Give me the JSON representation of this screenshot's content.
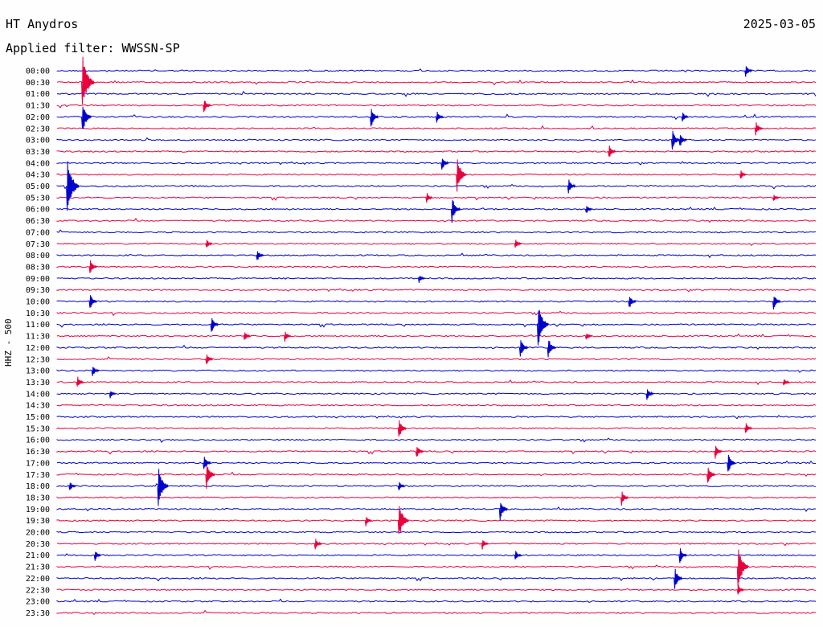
{
  "header": {
    "station": "HT Anydros",
    "date": "2025-03-05",
    "filter": "Applied filter: WWSSN-SP"
  },
  "colors": {
    "even_trace": "#0000cc",
    "odd_trace": "#e8003c"
  },
  "chart_data": {
    "type": "line",
    "title": "HT Anydros",
    "ylabel": "HHZ - 500",
    "row_interval_minutes": 30,
    "row_labels": [
      "00:00",
      "00:30",
      "01:00",
      "01:30",
      "02:00",
      "02:30",
      "03:00",
      "03:30",
      "04:00",
      "04:30",
      "05:00",
      "05:30",
      "06:00",
      "06:30",
      "07:00",
      "07:30",
      "08:00",
      "08:30",
      "09:00",
      "09:30",
      "10:00",
      "10:30",
      "11:00",
      "11:30",
      "12:00",
      "12:30",
      "13:00",
      "13:30",
      "14:00",
      "14:30",
      "15:00",
      "15:30",
      "16:00",
      "16:30",
      "17:00",
      "17:30",
      "18:00",
      "18:30",
      "19:00",
      "19:30",
      "20:00",
      "20:30",
      "21:00",
      "21:30",
      "22:00",
      "22:30",
      "23:00",
      "23:30"
    ],
    "events": [
      {
        "row": 0,
        "minute": 27.2,
        "amp": 0.6
      },
      {
        "row": 1,
        "minute": 1.0,
        "amp": 2.5
      },
      {
        "row": 3,
        "minute": 5.8,
        "amp": 0.7
      },
      {
        "row": 4,
        "minute": 1.0,
        "amp": 1.5
      },
      {
        "row": 4,
        "minute": 12.4,
        "amp": 1.0
      },
      {
        "row": 4,
        "minute": 15.0,
        "amp": 0.6
      },
      {
        "row": 4,
        "minute": 24.7,
        "amp": 0.5
      },
      {
        "row": 5,
        "minute": 27.6,
        "amp": 0.7
      },
      {
        "row": 6,
        "minute": 24.3,
        "amp": 1.0
      },
      {
        "row": 6,
        "minute": 24.6,
        "amp": 0.7
      },
      {
        "row": 7,
        "minute": 21.8,
        "amp": 0.7
      },
      {
        "row": 8,
        "minute": 15.2,
        "amp": 0.7
      },
      {
        "row": 9,
        "minute": 15.8,
        "amp": 1.6
      },
      {
        "row": 9,
        "minute": 27.0,
        "amp": 0.5
      },
      {
        "row": 10,
        "minute": 0.4,
        "amp": 2.5
      },
      {
        "row": 10,
        "minute": 20.2,
        "amp": 0.8
      },
      {
        "row": 11,
        "minute": 14.6,
        "amp": 0.5
      },
      {
        "row": 11,
        "minute": 28.3,
        "amp": 0.4
      },
      {
        "row": 12,
        "minute": 15.6,
        "amp": 1.2
      },
      {
        "row": 12,
        "minute": 20.9,
        "amp": 0.5
      },
      {
        "row": 15,
        "minute": 5.9,
        "amp": 0.5
      },
      {
        "row": 15,
        "minute": 18.1,
        "amp": 0.5
      },
      {
        "row": 16,
        "minute": 7.9,
        "amp": 0.6
      },
      {
        "row": 17,
        "minute": 1.3,
        "amp": 0.7
      },
      {
        "row": 18,
        "minute": 14.3,
        "amp": 0.4
      },
      {
        "row": 20,
        "minute": 1.3,
        "amp": 0.8
      },
      {
        "row": 20,
        "minute": 22.6,
        "amp": 0.7
      },
      {
        "row": 20,
        "minute": 28.3,
        "amp": 0.8
      },
      {
        "row": 22,
        "minute": 6.1,
        "amp": 0.8
      },
      {
        "row": 22,
        "minute": 19.0,
        "amp": 2.0
      },
      {
        "row": 23,
        "minute": 7.4,
        "amp": 0.5
      },
      {
        "row": 23,
        "minute": 9.0,
        "amp": 0.5
      },
      {
        "row": 23,
        "minute": 20.9,
        "amp": 0.4
      },
      {
        "row": 24,
        "minute": 18.3,
        "amp": 1.0
      },
      {
        "row": 24,
        "minute": 19.4,
        "amp": 1.0
      },
      {
        "row": 25,
        "minute": 5.9,
        "amp": 0.6
      },
      {
        "row": 26,
        "minute": 1.4,
        "amp": 0.6
      },
      {
        "row": 27,
        "minute": 0.8,
        "amp": 0.6
      },
      {
        "row": 27,
        "minute": 28.7,
        "amp": 0.4
      },
      {
        "row": 28,
        "minute": 2.1,
        "amp": 0.4
      },
      {
        "row": 28,
        "minute": 23.3,
        "amp": 0.6
      },
      {
        "row": 31,
        "minute": 13.5,
        "amp": 1.0
      },
      {
        "row": 31,
        "minute": 27.2,
        "amp": 0.6
      },
      {
        "row": 33,
        "minute": 14.2,
        "amp": 0.7
      },
      {
        "row": 33,
        "minute": 26.0,
        "amp": 0.7
      },
      {
        "row": 34,
        "minute": 5.8,
        "amp": 0.8
      },
      {
        "row": 34,
        "minute": 26.5,
        "amp": 1.0
      },
      {
        "row": 35,
        "minute": 5.9,
        "amp": 1.3
      },
      {
        "row": 35,
        "minute": 25.7,
        "amp": 0.9
      },
      {
        "row": 36,
        "minute": 0.5,
        "amp": 0.5
      },
      {
        "row": 36,
        "minute": 4.0,
        "amp": 1.8
      },
      {
        "row": 36,
        "minute": 13.5,
        "amp": 0.5
      },
      {
        "row": 37,
        "minute": 22.3,
        "amp": 0.7
      },
      {
        "row": 38,
        "minute": 17.5,
        "amp": 1.0
      },
      {
        "row": 39,
        "minute": 13.5,
        "amp": 1.8
      },
      {
        "row": 39,
        "minute": 12.2,
        "amp": 0.5
      },
      {
        "row": 41,
        "minute": 10.2,
        "amp": 0.6
      },
      {
        "row": 41,
        "minute": 16.8,
        "amp": 0.5
      },
      {
        "row": 42,
        "minute": 1.5,
        "amp": 0.5
      },
      {
        "row": 42,
        "minute": 18.1,
        "amp": 0.5
      },
      {
        "row": 42,
        "minute": 24.6,
        "amp": 0.8
      },
      {
        "row": 43,
        "minute": 26.9,
        "amp": 2.0
      },
      {
        "row": 44,
        "minute": 24.4,
        "amp": 1.0
      },
      {
        "row": 45,
        "minute": 26.9,
        "amp": 0.5
      }
    ]
  }
}
